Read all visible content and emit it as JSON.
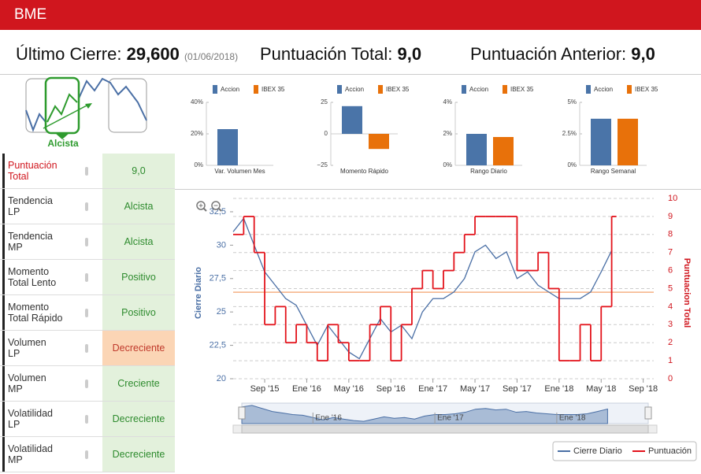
{
  "header": {
    "title": "BME"
  },
  "summary": {
    "last_close_label": "Último Cierre:",
    "last_close": "29,600",
    "last_close_date": "(01/06/2018)",
    "total_label": "Puntuación Total:",
    "total": "9,0",
    "previous_label": "Puntuación Anterior:",
    "previous": "9,0"
  },
  "trend_badge": "Alcista",
  "indicators": [
    {
      "label": "Puntuación\nTotal",
      "status": "9,0",
      "background": "#e3f1dc",
      "text_color": "#2e8b2e",
      "label_color": "#d0161e"
    },
    {
      "label": "Tendencia\nLP",
      "status": "Alcista",
      "background": "#e3f1dc",
      "text_color": "#2e8b2e",
      "label_color": "#333333"
    },
    {
      "label": "Tendencia\nMP",
      "status": "Alcista",
      "background": "#e3f1dc",
      "text_color": "#2e8b2e",
      "label_color": "#333333"
    },
    {
      "label": "Momento\nTotal Lento",
      "status": "Positivo",
      "background": "#e3f1dc",
      "text_color": "#2e8b2e",
      "label_color": "#333333"
    },
    {
      "label": "Momento\nTotal Rápido",
      "status": "Positivo",
      "background": "#e3f1dc",
      "text_color": "#2e8b2e",
      "label_color": "#333333"
    },
    {
      "label": "Volumen\nLP",
      "status": "Decreciente",
      "background": "#fbd5b5",
      "text_color": "#c0392b",
      "label_color": "#333333"
    },
    {
      "label": "Volumen\nMP",
      "status": "Creciente",
      "background": "#e3f1dc",
      "text_color": "#2e8b2e",
      "label_color": "#333333"
    },
    {
      "label": "Volatilidad\nLP",
      "status": "Decreciente",
      "background": "#e3f1dc",
      "text_color": "#2e8b2e",
      "label_color": "#333333"
    },
    {
      "label": "Volatilidad\nMP",
      "status": "Decreciente",
      "background": "#e3f1dc",
      "text_color": "#2e8b2e",
      "label_color": "#333333"
    }
  ],
  "chart_data": [
    {
      "type": "bar",
      "title": "Var. Volumen Mes",
      "categories": [
        "Accion",
        "IBEX 35"
      ],
      "colors": [
        "#4a74a8",
        "#e8710a"
      ],
      "values": [
        23,
        null
      ],
      "ylim": [
        0,
        40
      ],
      "yticks": [
        {
          "value": 0,
          "label": "0%"
        },
        {
          "value": 20,
          "label": "20%"
        },
        {
          "value": 40,
          "label": "40%"
        }
      ]
    },
    {
      "type": "bar",
      "title": "Momento Rápido",
      "categories": [
        "Accion",
        "IBEX 35"
      ],
      "colors": [
        "#4a74a8",
        "#e8710a"
      ],
      "values": [
        22,
        -12
      ],
      "ylim": [
        -25,
        25
      ],
      "yticks": [
        {
          "value": -25,
          "label": "−25"
        },
        0,
        25
      ]
    },
    {
      "type": "bar",
      "title": "Rango Diario",
      "categories": [
        "Accion",
        "IBEX 35"
      ],
      "colors": [
        "#4a74a8",
        "#e8710a"
      ],
      "values": [
        2.0,
        1.8
      ],
      "ylim": [
        0,
        4
      ],
      "yticks": [
        {
          "value": 0,
          "label": "0%"
        },
        {
          "value": 2,
          "label": "2%"
        },
        {
          "value": 4,
          "label": "4%"
        }
      ]
    },
    {
      "type": "bar",
      "title": "Rango Semanal",
      "categories": [
        "Accion",
        "IBEX 35"
      ],
      "colors": [
        "#4a74a8",
        "#e8710a"
      ],
      "values": [
        3.7,
        3.7
      ],
      "ylim": [
        0,
        5
      ],
      "yticks": [
        {
          "value": 0,
          "label": "0%"
        },
        {
          "value": 2.5,
          "label": "2.5%"
        },
        {
          "value": 5,
          "label": "5%"
        }
      ]
    },
    {
      "type": "line",
      "ylabel": "Cierre Diario",
      "y2label": "Puntuacion Total",
      "x": [
        "2015-06",
        "2015-07",
        "2015-08",
        "2015-09",
        "2015-10",
        "2015-11",
        "2015-12",
        "2016-01",
        "2016-02",
        "2016-03",
        "2016-04",
        "2016-05",
        "2016-06",
        "2016-07",
        "2016-08",
        "2016-09",
        "2016-10",
        "2016-11",
        "2016-12",
        "2017-01",
        "2017-02",
        "2017-03",
        "2017-04",
        "2017-05",
        "2017-06",
        "2017-07",
        "2017-08",
        "2017-09",
        "2017-10",
        "2017-11",
        "2017-12",
        "2018-01",
        "2018-02",
        "2018-03",
        "2018-04",
        "2018-05",
        "2018-06"
      ],
      "series": [
        {
          "name": "Cierre Diario",
          "color": "#4a6fa5",
          "values": [
            31,
            32,
            30,
            28,
            27,
            26,
            25.5,
            24,
            22.5,
            24,
            23,
            22,
            21.5,
            23,
            24.5,
            23.5,
            24,
            23,
            25,
            26,
            26,
            26.5,
            27.5,
            29.5,
            30,
            29,
            29.5,
            27.5,
            28,
            27,
            26.5,
            26,
            26,
            26,
            26.5,
            28,
            29.6
          ]
        },
        {
          "name": "Puntuación",
          "color": "#e3131b",
          "axis": "y2",
          "step": true,
          "values": [
            8,
            9,
            7,
            3,
            4,
            2,
            3,
            2,
            1,
            3,
            2,
            1,
            1,
            3,
            4,
            1,
            3,
            5,
            6,
            5,
            6,
            7,
            8,
            9,
            9,
            9,
            9,
            6,
            6,
            7,
            5,
            1,
            1,
            3,
            1,
            4,
            9
          ]
        }
      ],
      "reference_line": {
        "value": 4.8,
        "axis": "y2",
        "color": "#f4b183"
      },
      "xlim": [
        "2015-06",
        "2018-10"
      ],
      "xticks": [
        {
          "value": "2015-09",
          "label": "Sep '15"
        },
        {
          "value": "2016-01",
          "label": "Ene '16"
        },
        {
          "value": "2016-05",
          "label": "May '16"
        },
        {
          "value": "2016-09",
          "label": "Sep '16"
        },
        {
          "value": "2017-01",
          "label": "Ene '17"
        },
        {
          "value": "2017-05",
          "label": "May '17"
        },
        {
          "value": "2017-09",
          "label": "Sep '17"
        },
        {
          "value": "2018-01",
          "label": "Ene '18"
        },
        {
          "value": "2018-05",
          "label": "May '18"
        },
        {
          "value": "2018-09",
          "label": "Sep '18"
        }
      ],
      "ylim": [
        20,
        33.5
      ],
      "yticks": [
        20,
        {
          "value": 22.5,
          "label": "22,5"
        },
        25,
        {
          "value": 27.5,
          "label": "27,5"
        },
        30,
        {
          "value": 32.5,
          "label": "32,5"
        }
      ],
      "y2lim": [
        0,
        10
      ],
      "y2ticks": [
        0,
        1,
        2,
        3,
        4,
        5,
        6,
        7,
        8,
        9,
        10
      ],
      "grid": true,
      "navigator": {
        "xticks": [
          {
            "value": "2016-01",
            "label": "Ene '16"
          },
          {
            "value": "2017-01",
            "label": "Ene '17"
          },
          {
            "value": "2018-01",
            "label": "Ene '18"
          }
        ]
      }
    }
  ]
}
